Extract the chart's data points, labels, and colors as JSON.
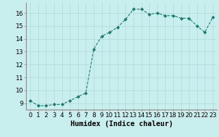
{
  "x": [
    0,
    1,
    2,
    3,
    4,
    5,
    6,
    7,
    8,
    9,
    10,
    11,
    12,
    13,
    14,
    15,
    16,
    17,
    18,
    19,
    20,
    21,
    22,
    23
  ],
  "y": [
    9.2,
    8.8,
    8.8,
    8.9,
    8.9,
    9.2,
    9.5,
    9.8,
    13.2,
    14.2,
    14.5,
    14.9,
    15.5,
    16.3,
    16.3,
    15.9,
    16.0,
    15.8,
    15.8,
    15.6,
    15.6,
    15.0,
    14.5,
    15.7
  ],
  "xlabel": "Humidex (Indice chaleur)",
  "ylim": [
    8.5,
    16.8
  ],
  "xlim": [
    -0.5,
    23.5
  ],
  "yticks": [
    9,
    10,
    11,
    12,
    13,
    14,
    15,
    16
  ],
  "xticks": [
    0,
    1,
    2,
    3,
    4,
    5,
    6,
    7,
    8,
    9,
    10,
    11,
    12,
    13,
    14,
    15,
    16,
    17,
    18,
    19,
    20,
    21,
    22,
    23
  ],
  "line_color": "#1a7a6e",
  "marker": "D",
  "marker_size": 2.2,
  "bg_color": "#c8eeed",
  "grid_color": "#b0d8d8",
  "tick_label_fontsize": 6.5,
  "xlabel_fontsize": 7.5
}
